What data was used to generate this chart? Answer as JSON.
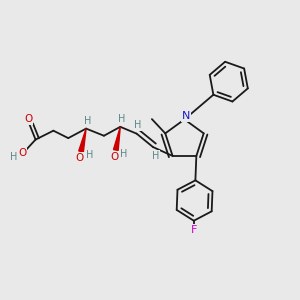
{
  "bg_color": "#e9e9e9",
  "bond_color": "#1a1a1a",
  "atom_colors": {
    "O": "#cc0000",
    "N": "#1a1acc",
    "F": "#cc00cc",
    "H": "#5a8888",
    "C": "#1a1a1a"
  },
  "lw": 1.3
}
